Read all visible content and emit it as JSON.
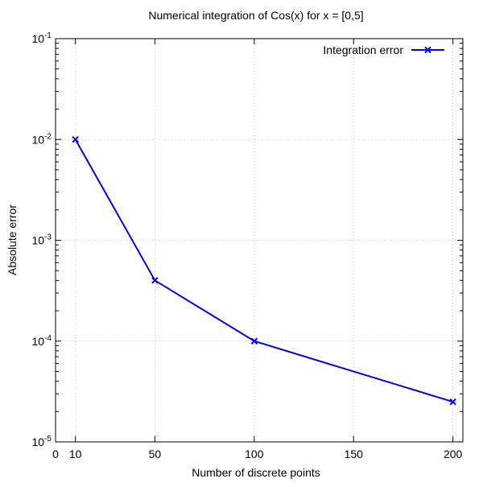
{
  "chart_data": {
    "type": "line",
    "title": "Numerical integration of Cos(x) for x = [0,5]",
    "xlabel": "Number of discrete points",
    "ylabel": "Absolute error",
    "x_ticks": [
      0,
      10,
      50,
      100,
      150,
      200
    ],
    "x_range": [
      0,
      205
    ],
    "y_scale": "log",
    "y_ticks": [
      {
        "value": 0.1,
        "base": "10",
        "exp": "-1"
      },
      {
        "value": 0.01,
        "base": "10",
        "exp": "-2"
      },
      {
        "value": 0.001,
        "base": "10",
        "exp": "-3"
      },
      {
        "value": 0.0001,
        "base": "10",
        "exp": "-4"
      },
      {
        "value": 1e-05,
        "base": "10",
        "exp": "-5"
      }
    ],
    "y_range": [
      1e-05,
      0.1
    ],
    "grid": true,
    "legend_position": "top-right",
    "series": [
      {
        "name": "Integration error",
        "color": "#0000ee",
        "marker": "x",
        "points": [
          {
            "x": 10,
            "y": 0.01
          },
          {
            "x": 50,
            "y": 0.0004
          },
          {
            "x": 100,
            "y": 0.0001
          },
          {
            "x": 200,
            "y": 2.5e-05
          }
        ]
      }
    ]
  }
}
